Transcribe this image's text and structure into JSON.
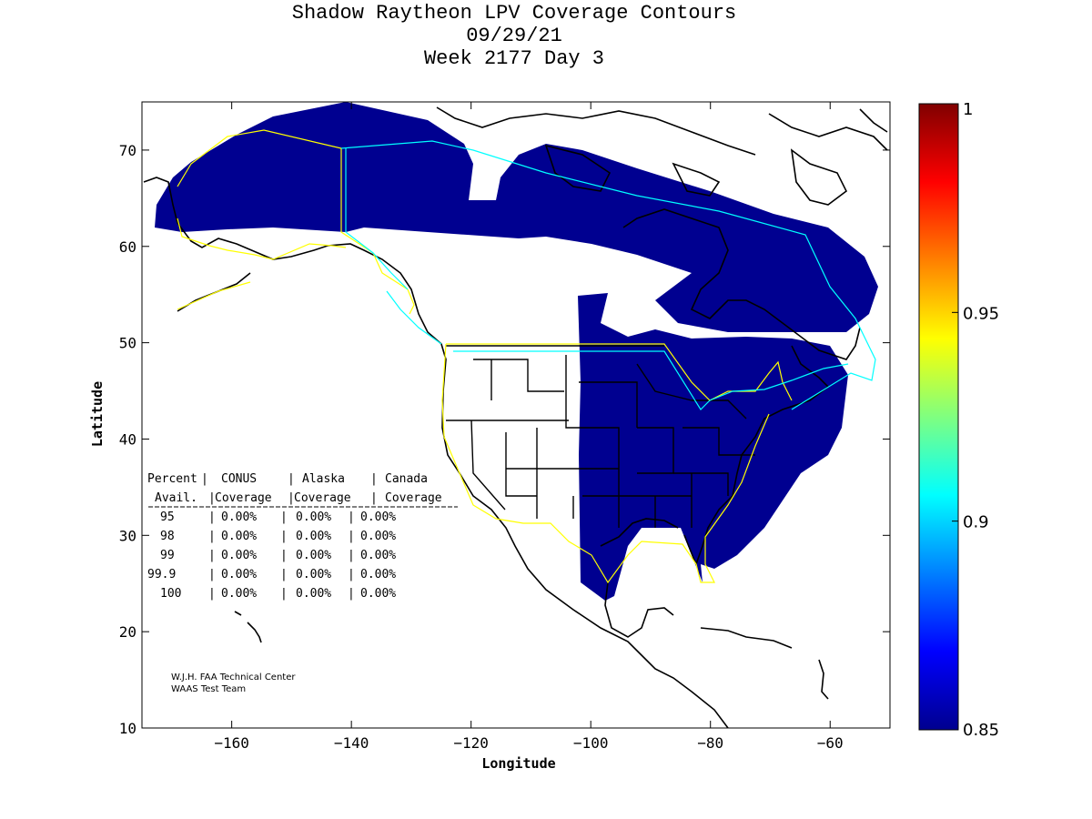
{
  "title": {
    "line1": "Shadow Raytheon LPV Coverage Contours",
    "line2": "09/29/21",
    "line3": "Week 2177 Day 3"
  },
  "map": {
    "xlabel": "Longitude",
    "ylabel": "Latitude",
    "xlim": [
      -175,
      -50
    ],
    "ylim": [
      10,
      75
    ],
    "xticks": [
      -160,
      -140,
      -120,
      -100,
      -80,
      -60
    ],
    "yticks": [
      10,
      20,
      30,
      40,
      50,
      60,
      70
    ],
    "coverage_color": "#000090",
    "conus_boundary_color": "#ffff00",
    "alaska_canada_boundary_color": "#00ffff"
  },
  "colorbar": {
    "range": [
      0.85,
      1
    ],
    "tick_labels": [
      "1",
      "0.95",
      "0.9",
      "0.85"
    ]
  },
  "table": {
    "header1": [
      "Percent",
      "CONUS",
      "Alaska",
      "Canada"
    ],
    "header2": [
      "Avail.",
      "Coverage",
      "Coverage",
      "Coverage"
    ],
    "rows": [
      {
        "pct": "95",
        "conus": "0.00%",
        "alaska": "0.00%",
        "canada": "0.00%"
      },
      {
        "pct": "98",
        "conus": "0.00%",
        "alaska": "0.00%",
        "canada": "0.00%"
      },
      {
        "pct": "99",
        "conus": "0.00%",
        "alaska": "0.00%",
        "canada": "0.00%"
      },
      {
        "pct": "99.9",
        "conus": "0.00%",
        "alaska": "0.00%",
        "canada": "0.00%"
      },
      {
        "pct": "100",
        "conus": "0.00%",
        "alaska": "0.00%",
        "canada": "0.00%"
      }
    ]
  },
  "credit": {
    "line1": "W.J.H. FAA Technical Center",
    "line2": "WAAS Test Team"
  }
}
